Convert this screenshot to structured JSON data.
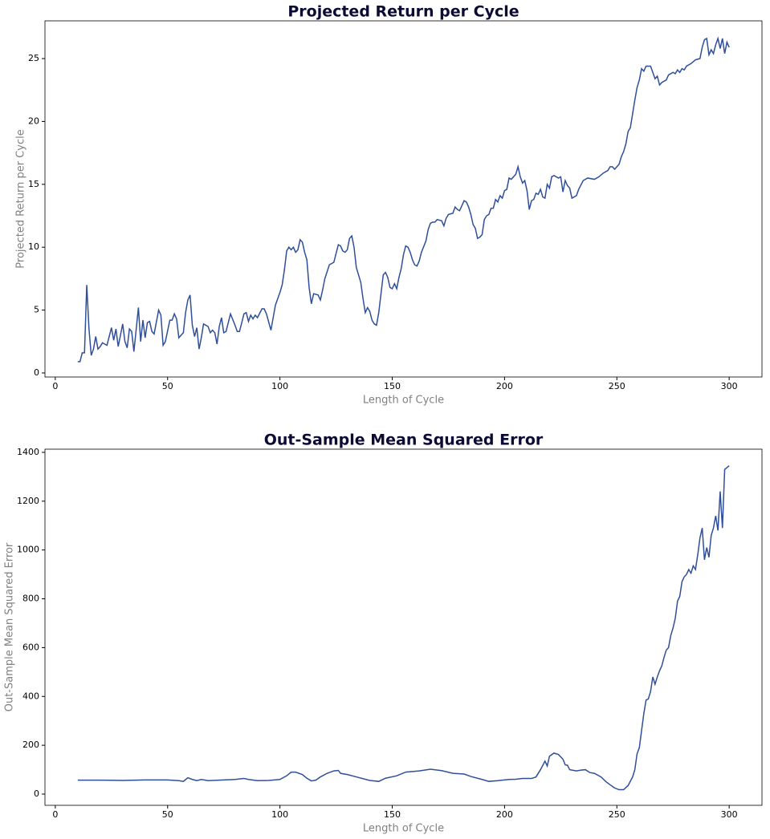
{
  "chart_data": [
    {
      "type": "line",
      "title": "Projected Return per Cycle",
      "xlabel": "Length of Cycle",
      "ylabel": "Projected Return per Cycle",
      "color": "#2f4f9b",
      "xlim": [
        -4.6,
        314.6
      ],
      "ylim": [
        -0.32,
        28.0
      ],
      "xticks": [
        0,
        50,
        100,
        150,
        200,
        250,
        300
      ],
      "yticks": [
        0,
        5,
        10,
        15,
        20,
        25
      ],
      "x": [
        10,
        11,
        12,
        13,
        14,
        15,
        16,
        17,
        18,
        19,
        20,
        21,
        23,
        25,
        26,
        27,
        28,
        30,
        31,
        32,
        33,
        34,
        35,
        37,
        38,
        39,
        40,
        41,
        42,
        43,
        44,
        46,
        47,
        48,
        49,
        51,
        52,
        53,
        54,
        55,
        57,
        58,
        59,
        60,
        61,
        62,
        63,
        64,
        65,
        66,
        68,
        69,
        70,
        71,
        72,
        73,
        74,
        75,
        76,
        78,
        80,
        81,
        82,
        84,
        85,
        86,
        87,
        88,
        89,
        90,
        92,
        93,
        94,
        96,
        97,
        98,
        100,
        101,
        102,
        103,
        104,
        105,
        106,
        107,
        108,
        109,
        110,
        111,
        112,
        113,
        114,
        115,
        117,
        118,
        119,
        120,
        122,
        124,
        125,
        126,
        127,
        128,
        129,
        130,
        131,
        132,
        133,
        134,
        135,
        136,
        137,
        138,
        139,
        140,
        141,
        142,
        143,
        144,
        145,
        146,
        147,
        148,
        149,
        150,
        151,
        152,
        153,
        154,
        155,
        156,
        157,
        158,
        159,
        160,
        161,
        162,
        163,
        165,
        166,
        167,
        168,
        169,
        170,
        172,
        173,
        174,
        175,
        177,
        178,
        179,
        180,
        181,
        182,
        183,
        184,
        185,
        186,
        187,
        188,
        189,
        190,
        191,
        192,
        193,
        194,
        195,
        196,
        197,
        198,
        199,
        200,
        201,
        202,
        203,
        204,
        205,
        206,
        207,
        208,
        209,
        210,
        211,
        212,
        213,
        214,
        215,
        216,
        217,
        218,
        219,
        220,
        221,
        222,
        223,
        224,
        225,
        226,
        227,
        228,
        229,
        230,
        232,
        233,
        235,
        237,
        240,
        242,
        244,
        246,
        247,
        248,
        249,
        251,
        252,
        253,
        254,
        255,
        256,
        257,
        258,
        259,
        260,
        261,
        262,
        263,
        265,
        266,
        267,
        268,
        269,
        270,
        272,
        273,
        275,
        276,
        277,
        278,
        279,
        280,
        281,
        283,
        285,
        287,
        288,
        289,
        290,
        291,
        292,
        293,
        294,
        295,
        296,
        297,
        298,
        299,
        300
      ],
      "values": [
        0.9,
        0.9,
        1.6,
        1.6,
        7.0,
        3.5,
        1.4,
        1.9,
        2.9,
        1.9,
        2.1,
        2.4,
        2.2,
        3.6,
        2.6,
        3.5,
        2.1,
        3.9,
        2.5,
        2.0,
        3.5,
        3.3,
        1.7,
        5.2,
        2.5,
        4.2,
        2.8,
        4.0,
        4.1,
        3.3,
        3.1,
        5.0,
        4.6,
        2.2,
        2.5,
        4.2,
        4.2,
        4.7,
        4.3,
        2.8,
        3.2,
        4.8,
        5.8,
        6.2,
        3.8,
        2.9,
        3.6,
        1.9,
        2.8,
        3.9,
        3.7,
        3.2,
        3.4,
        3.2,
        2.3,
        3.7,
        4.4,
        3.2,
        3.3,
        4.7,
        3.8,
        3.3,
        3.3,
        4.7,
        4.8,
        4.1,
        4.6,
        4.3,
        4.6,
        4.4,
        5.1,
        5.1,
        4.7,
        3.4,
        4.4,
        5.4,
        6.4,
        7.0,
        8.2,
        9.7,
        10.0,
        9.8,
        10.0,
        9.6,
        9.8,
        10.6,
        10.4,
        9.6,
        9.0,
        6.8,
        5.5,
        6.3,
        6.2,
        5.8,
        6.6,
        7.5,
        8.6,
        8.8,
        9.5,
        10.2,
        10.1,
        9.7,
        9.6,
        9.8,
        10.7,
        10.9,
        10.0,
        8.4,
        7.8,
        7.2,
        5.9,
        4.8,
        5.2,
        4.9,
        4.2,
        3.9,
        3.8,
        4.8,
        6.3,
        7.8,
        8.0,
        7.6,
        6.8,
        6.7,
        7.1,
        6.7,
        7.6,
        8.3,
        9.4,
        10.1,
        10.0,
        9.6,
        9.0,
        8.6,
        8.5,
        8.9,
        9.6,
        10.5,
        11.4,
        11.9,
        12.0,
        12.0,
        12.2,
        12.1,
        11.7,
        12.3,
        12.6,
        12.7,
        13.2,
        13.0,
        12.9,
        13.3,
        13.7,
        13.6,
        13.2,
        12.6,
        11.8,
        11.5,
        10.7,
        10.8,
        11.0,
        12.2,
        12.5,
        12.6,
        13.1,
        13.1,
        13.8,
        13.6,
        14.1,
        13.9,
        14.5,
        14.6,
        15.5,
        15.4,
        15.6,
        15.8,
        16.4,
        15.6,
        15.1,
        15.3,
        14.5,
        13.0,
        13.7,
        13.8,
        14.3,
        14.2,
        14.6,
        14.0,
        13.9,
        15.0,
        14.7,
        15.6,
        15.7,
        15.6,
        15.5,
        15.6,
        14.4,
        15.3,
        14.9,
        14.7,
        13.9,
        14.1,
        14.6,
        15.3,
        15.5,
        15.4,
        15.6,
        15.9,
        16.1,
        16.4,
        16.4,
        16.2,
        16.6,
        17.2,
        17.6,
        18.2,
        19.2,
        19.5,
        20.6,
        21.7,
        22.7,
        23.3,
        24.2,
        24.0,
        24.4,
        24.4,
        23.9,
        23.4,
        23.6,
        22.9,
        23.1,
        23.3,
        23.7,
        23.9,
        23.8,
        24.1,
        23.9,
        24.2,
        24.1,
        24.4,
        24.6,
        24.9,
        25.0,
        25.9,
        26.5,
        26.6,
        25.3,
        25.7,
        25.4,
        26.1,
        26.6,
        25.8,
        26.6,
        25.4,
        26.3,
        25.9
      ]
    },
    {
      "type": "line",
      "title": "Out-Sample Mean Squared Error",
      "xlabel": "Length of Cycle",
      "ylabel": "Out-Sample Mean Squared Error",
      "color": "#2f4f9b",
      "xlim": [
        -4.6,
        314.6
      ],
      "ylim": [
        -46,
        1413
      ],
      "xticks": [
        0,
        50,
        100,
        150,
        200,
        250,
        300
      ],
      "yticks": [
        0,
        200,
        400,
        600,
        800,
        1000,
        1200,
        1400
      ],
      "x": [
        10,
        20,
        30,
        40,
        50,
        55,
        57,
        59,
        61,
        63,
        65,
        68,
        75,
        80,
        84,
        86,
        90,
        95,
        100,
        103,
        105,
        107,
        110,
        112,
        114,
        116,
        118,
        121,
        124,
        126,
        127,
        130,
        135,
        140,
        144,
        147,
        152,
        156,
        162,
        167,
        172,
        177,
        182,
        185,
        190,
        193,
        197,
        202,
        205,
        208,
        212,
        214,
        216,
        218,
        219,
        220,
        222,
        224,
        226,
        227,
        228,
        229,
        232,
        234,
        236,
        238,
        240,
        243,
        245,
        247,
        249,
        251,
        253,
        255,
        257,
        258,
        259,
        260,
        261,
        262,
        263,
        264,
        265,
        266,
        267,
        268,
        269,
        270,
        271,
        272,
        273,
        274,
        275,
        276,
        277,
        278,
        279,
        280,
        281,
        282,
        283,
        284,
        285,
        286,
        287,
        288,
        289,
        290,
        291,
        292,
        293,
        294,
        295,
        296,
        297,
        298,
        300
      ],
      "values": [
        57,
        57,
        56,
        58,
        58,
        55,
        52,
        67,
        60,
        55,
        60,
        55,
        58,
        60,
        64,
        60,
        55,
        56,
        60,
        75,
        90,
        90,
        80,
        65,
        54,
        57,
        70,
        85,
        95,
        97,
        85,
        80,
        68,
        56,
        52,
        65,
        75,
        90,
        95,
        102,
        96,
        85,
        82,
        72,
        60,
        52,
        55,
        60,
        61,
        64,
        64,
        70,
        100,
        135,
        115,
        155,
        168,
        162,
        143,
        120,
        118,
        100,
        95,
        98,
        100,
        88,
        85,
        70,
        52,
        38,
        25,
        18,
        18,
        35,
        70,
        100,
        165,
        190,
        260,
        330,
        385,
        390,
        420,
        480,
        450,
        480,
        505,
        525,
        560,
        590,
        600,
        650,
        680,
        720,
        790,
        810,
        870,
        890,
        900,
        920,
        905,
        935,
        920,
        980,
        1050,
        1090,
        960,
        1010,
        970,
        1060,
        1090,
        1140,
        1080,
        1240,
        1090,
        1330,
        1345
      ]
    }
  ]
}
